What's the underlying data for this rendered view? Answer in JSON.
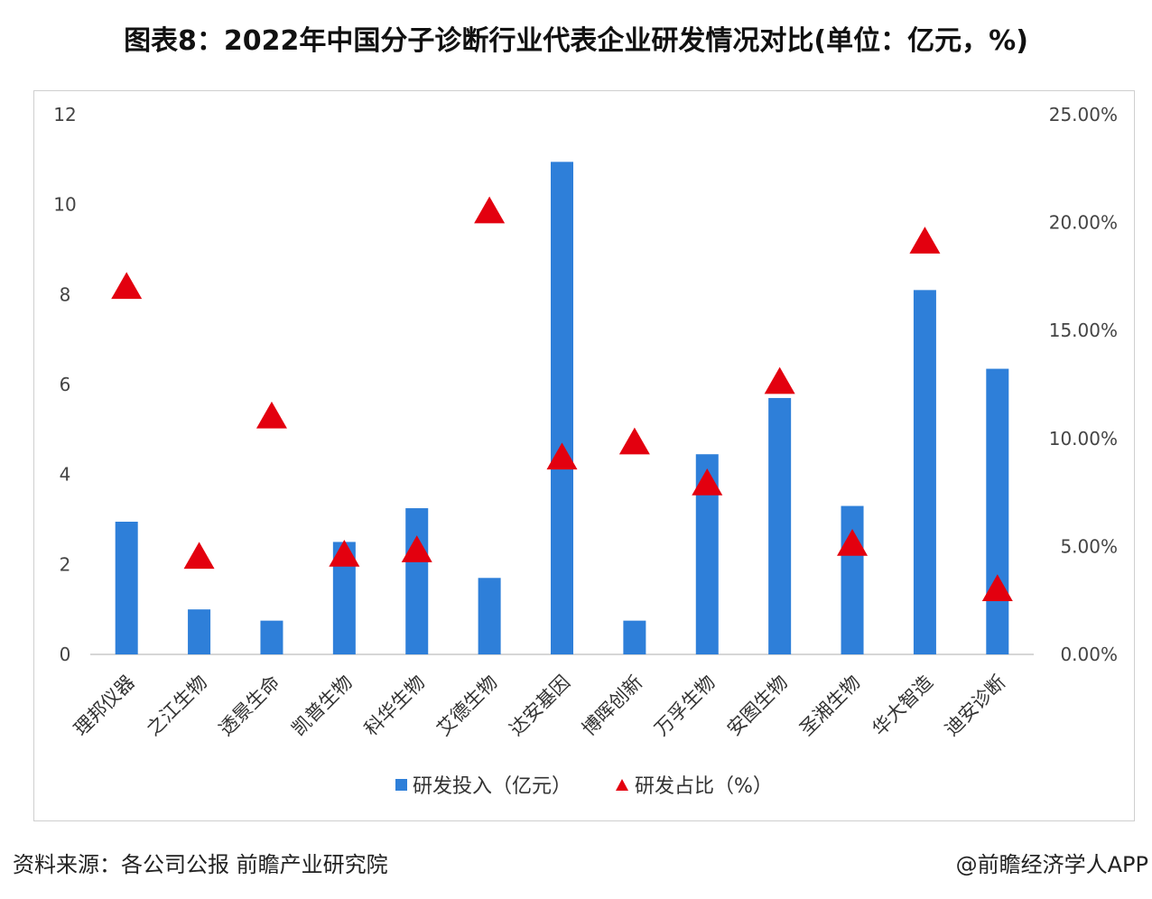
{
  "title": "图表8：2022年中国分子诊断行业代表企业研发情况对比(单位：亿元，%)",
  "footer": {
    "source": "资料来源：各公司公报 前瞻产业研究院",
    "brand": "@前瞻经济学人APP"
  },
  "colors": {
    "bar": "#2E7FD9",
    "marker": "#E3000F",
    "axis": "#c8c8c8"
  },
  "chart_data": {
    "type": "bar",
    "categories": [
      "理邦仪器",
      "之江生物",
      "透景生命",
      "凯普生物",
      "科华生物",
      "艾德生物",
      "达安基因",
      "博晖创新",
      "万孚生物",
      "安图生物",
      "圣湘生物",
      "华大智造",
      "迪安诊断"
    ],
    "series": [
      {
        "name": "研发投入（亿元）",
        "type": "bar",
        "axis": "left",
        "values": [
          2.95,
          1.0,
          0.75,
          2.5,
          3.25,
          1.7,
          10.95,
          0.75,
          4.45,
          5.7,
          3.3,
          8.1,
          6.35
        ]
      },
      {
        "name": "研发占比（%）",
        "type": "scatter",
        "marker": "triangle",
        "axis": "right",
        "values": [
          17.0,
          4.5,
          11.0,
          4.6,
          4.8,
          20.5,
          9.1,
          9.8,
          7.9,
          12.6,
          5.1,
          19.1,
          3.0
        ]
      }
    ],
    "y_left": {
      "ylim": [
        0,
        12
      ],
      "ticks": [
        "0",
        "2",
        "4",
        "6",
        "8",
        "10",
        "12"
      ]
    },
    "y_right": {
      "ylim": [
        0,
        25
      ],
      "ticks": [
        "0.00%",
        "5.00%",
        "10.00%",
        "15.00%",
        "20.00%",
        "25.00%"
      ]
    },
    "legend": {
      "position": "bottom",
      "items": [
        "研发投入（亿元）",
        "研发占比（%）"
      ]
    },
    "grid": false
  }
}
